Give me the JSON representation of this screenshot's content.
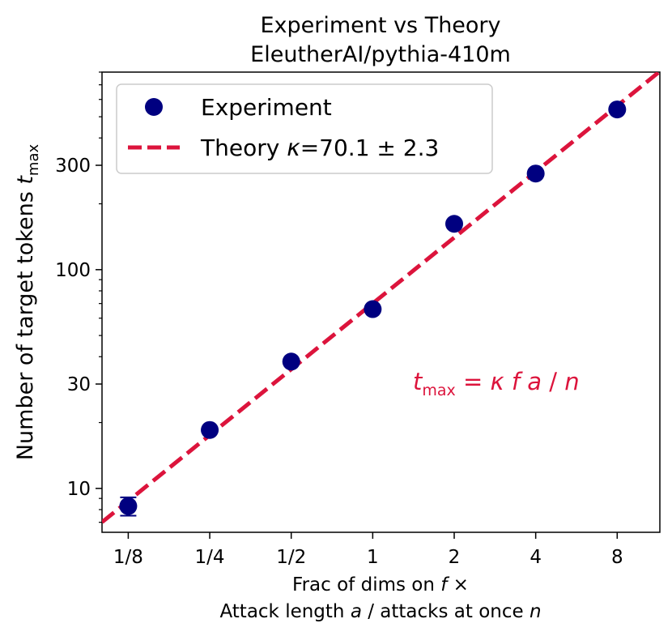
{
  "chart_data": {
    "type": "scatter",
    "title": "Experiment vs Theory",
    "subtitle": "EleutherAI/pythia-410m",
    "xlabel_line1": "Frac of dims on f ×",
    "xlabel_line2": "Attack length a / attacks at once n",
    "ylabel": "Number of target tokens t_max",
    "x_scale": "log2",
    "y_scale": "log10",
    "xlim": [
      0.1,
      11.5
    ],
    "ylim": [
      6.3,
      800
    ],
    "x_ticks": [
      0.125,
      0.25,
      0.5,
      1,
      2,
      4,
      8
    ],
    "x_tick_labels": [
      "1/8",
      "1/4",
      "1/2",
      "1",
      "2",
      "4",
      "8"
    ],
    "y_ticks": [
      10,
      30,
      100,
      300
    ],
    "y_tick_labels": [
      "10",
      "30",
      "100",
      "300"
    ],
    "series": [
      {
        "name": "Experiment",
        "kind": "points",
        "color": "#000080",
        "x": [
          0.125,
          0.25,
          0.5,
          1,
          2,
          4,
          8
        ],
        "y": [
          8.3,
          18.5,
          38,
          66,
          162,
          275,
          540
        ],
        "yerr": [
          0.8,
          0,
          0,
          0,
          0,
          0,
          0
        ]
      },
      {
        "name": "Theory κ=70.1 ± 2.3",
        "kind": "line",
        "style": "dashed",
        "color": "#dc143c",
        "kappa": 70.1
      }
    ],
    "annotation": "t_max = κ f a / n",
    "annotation_color": "#dc143c",
    "legend_position": "upper-left",
    "grid": false
  }
}
